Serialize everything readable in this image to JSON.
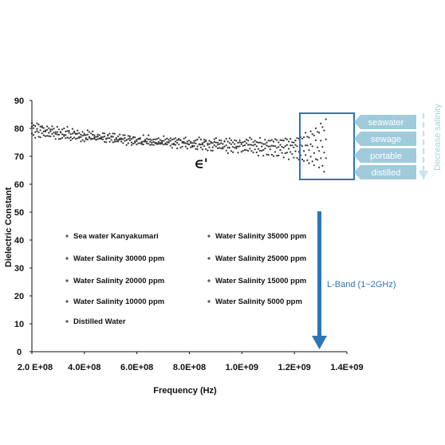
{
  "chart_data": {
    "type": "scatter",
    "title": "",
    "xlabel": "Frequency (Hz)",
    "ylabel": "Dielectric Constant",
    "xlim": [
      200000000,
      1400000000
    ],
    "ylim": [
      0,
      90
    ],
    "x_ticks": [
      200000000,
      400000000,
      600000000,
      800000000,
      1000000000,
      1200000000,
      1400000000
    ],
    "x_tick_labels": [
      "2.0 E+08",
      "4.0E+08",
      "6.0E+08",
      "8.0E+08",
      "1.0E+09",
      "1.2E+09",
      "1.4E+09"
    ],
    "y_ticks": [
      0,
      10,
      20,
      30,
      40,
      50,
      60,
      70,
      80,
      90
    ],
    "y_tick_labels": [
      "0",
      "10",
      "20",
      "30",
      "40",
      "50",
      "60",
      "70",
      "80",
      "90"
    ],
    "grid": false,
    "legend_position": "lower-left inside plot, two columns",
    "series": [
      {
        "name": "Sea water Kanyakumari",
        "x": [
          200000000,
          400000000,
          600000000,
          800000000,
          1000000000,
          1200000000,
          1320000000
        ],
        "y": [
          82,
          79,
          77,
          76,
          76,
          76,
          83
        ]
      },
      {
        "name": "Water Salinity 35000 ppm",
        "x": [
          200000000,
          400000000,
          600000000,
          800000000,
          1000000000,
          1200000000,
          1320000000
        ],
        "y": [
          81,
          78.5,
          76.5,
          76,
          75.5,
          75.5,
          81
        ]
      },
      {
        "name": "Water Salinity 30000 ppm",
        "x": [
          200000000,
          400000000,
          600000000,
          800000000,
          1000000000,
          1200000000,
          1320000000
        ],
        "y": [
          80.5,
          78,
          76,
          75.5,
          75,
          75,
          79
        ]
      },
      {
        "name": "Water Salinity 25000 ppm",
        "x": [
          200000000,
          400000000,
          600000000,
          800000000,
          1000000000,
          1200000000,
          1320000000
        ],
        "y": [
          80,
          77.5,
          76,
          75,
          74.5,
          74,
          76
        ]
      },
      {
        "name": "Water Salinity 20000 ppm",
        "x": [
          200000000,
          400000000,
          600000000,
          800000000,
          1000000000,
          1200000000,
          1320000000
        ],
        "y": [
          79.5,
          77.5,
          75.5,
          75,
          74,
          73.5,
          74
        ]
      },
      {
        "name": "Water Salinity 15000 ppm",
        "x": [
          200000000,
          400000000,
          600000000,
          800000000,
          1000000000,
          1200000000,
          1320000000
        ],
        "y": [
          79,
          77,
          75.5,
          74.5,
          73.5,
          72.5,
          71.5
        ]
      },
      {
        "name": "Water Salinity 10000 ppm",
        "x": [
          200000000,
          400000000,
          600000000,
          800000000,
          1000000000,
          1200000000,
          1320000000
        ],
        "y": [
          78.5,
          76.5,
          75,
          74,
          73,
          71.5,
          69
        ]
      },
      {
        "name": "Water Salinity 5000 ppm",
        "x": [
          200000000,
          400000000,
          600000000,
          800000000,
          1000000000,
          1200000000,
          1320000000
        ],
        "y": [
          78,
          76,
          75,
          73.5,
          72,
          70.5,
          67
        ]
      },
      {
        "name": "Distilled Water",
        "x": [
          200000000,
          400000000,
          600000000,
          800000000,
          1000000000,
          1200000000,
          1320000000
        ],
        "y": [
          77.5,
          76,
          74.5,
          73,
          71.5,
          69,
          65
        ]
      }
    ],
    "annotations": {
      "epsilon": "∈'",
      "tags": [
        "seawater",
        "sewage",
        "portable",
        "distilled"
      ],
      "side_label": "Decrease salinity",
      "band_label": "L-Band (1~2GHz)"
    }
  },
  "colors": {
    "points": "#333333",
    "band_arrow": "#2e75b6",
    "highlight_box": "#2e75b6",
    "tags": "#9fcbdb",
    "side_arrow": "#c7e3ec"
  }
}
